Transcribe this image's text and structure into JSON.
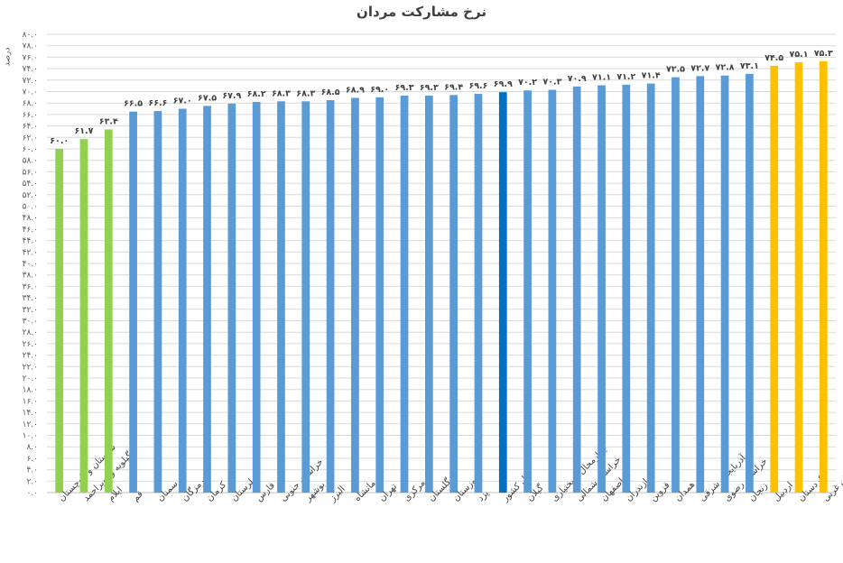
{
  "chart_data": {
    "type": "bar",
    "title": "نرخ مشارکت مردان",
    "ylabel": "درصد",
    "xlabel": "",
    "ylim": [
      0,
      80
    ],
    "ytick_step": 2,
    "grid": true,
    "legend": "none",
    "categories": [
      "سیستان و بلوچستان",
      "کهگیلویه و بویراحمد",
      "ایلام",
      "قم",
      "سمنان",
      "هرمزگان",
      "کرمان",
      "لرستان",
      "فارس",
      "خراسان جنوبی",
      "بوشهر",
      "البرز",
      "کرمانشاه",
      "تهران",
      "مرکزی",
      "گلستان",
      "خوزستان",
      "یزد",
      "کل کشور",
      "گیلان",
      "چهارمحال و بختیاری",
      "خراسان شمالی",
      "اصفهان",
      "مازندران",
      "قزوین",
      "همدان",
      "آذربایجان شرقی",
      "خراسان رضوی",
      "زنجان",
      "اردبیل",
      "کردستان",
      "آذربایجان غربی"
    ],
    "values": [
      60.0,
      61.7,
      63.4,
      66.5,
      66.6,
      67.0,
      67.5,
      67.9,
      68.2,
      68.3,
      68.3,
      68.5,
      68.9,
      69.0,
      69.3,
      69.3,
      69.4,
      69.6,
      69.9,
      70.2,
      70.3,
      70.9,
      71.1,
      71.2,
      71.4,
      72.5,
      72.7,
      72.8,
      73.1,
      74.5,
      75.1,
      75.3
    ],
    "value_labels": [
      "۶۰.۰",
      "۶۱.۷",
      "۶۳.۴",
      "۶۶.۵",
      "۶۶.۶",
      "۶۷.۰",
      "۶۷.۵",
      "۶۷.۹",
      "۶۸.۲",
      "۶۸.۳",
      "۶۸.۳",
      "۶۸.۵",
      "۶۸.۹",
      "۶۹.۰",
      "۶۹.۳",
      "۶۹.۳",
      "۶۹.۴",
      "۶۹.۶",
      "۶۹.۹",
      "۷۰.۲",
      "۷۰.۳",
      "۷۰.۹",
      "۷۱.۱",
      "۷۱.۲",
      "۷۱.۴",
      "۷۲.۵",
      "۷۲.۷",
      "۷۲.۸",
      "۷۳.۱",
      "۷۴.۵",
      "۷۵.۱",
      "۷۵.۳"
    ],
    "value_label_color": "#404040",
    "bar_colors": {
      "low": "#92D050",
      "normal": "#5B9BD5",
      "national": "#0070C0",
      "high": "#FFC000"
    },
    "bar_groups": [
      "low",
      "low",
      "low",
      "normal",
      "normal",
      "normal",
      "normal",
      "normal",
      "normal",
      "normal",
      "normal",
      "normal",
      "normal",
      "normal",
      "normal",
      "normal",
      "normal",
      "normal",
      "national",
      "normal",
      "normal",
      "normal",
      "normal",
      "normal",
      "normal",
      "normal",
      "normal",
      "normal",
      "normal",
      "high",
      "high",
      "high"
    ],
    "grid_color": "#D9D9D9"
  }
}
